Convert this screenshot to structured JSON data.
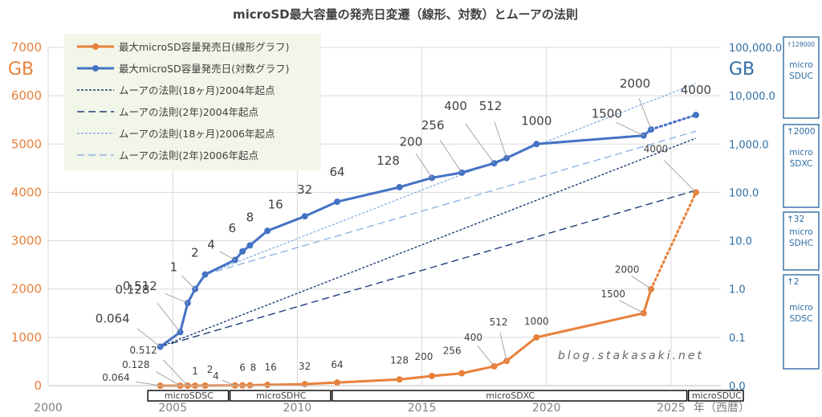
{
  "chart_data": {
    "type": "line",
    "title": "microSD最大容量の発売日変遷（線形、対数）とムーアの法則",
    "left_unit": "GB",
    "right_unit": "GB",
    "x_axis_label": "年（西暦）",
    "x_ticks": [
      2000,
      2005,
      2010,
      2015,
      2020,
      2025
    ],
    "x_range": [
      2000,
      2027
    ],
    "left_ticks": [
      0,
      1000,
      2000,
      3000,
      4000,
      5000,
      6000,
      7000
    ],
    "left_range": [
      0,
      7000
    ],
    "right_ticks": [
      "0.0",
      "0.1",
      "1.0",
      "10.0",
      "100.0",
      "1,000.0",
      "10,000.0",
      "100,000.0"
    ],
    "right_log_range": [
      0.01,
      100000
    ],
    "grid": true,
    "colors": {
      "linear": "#E8803A",
      "log": "#4472C4",
      "moore_dark": "#1F3F7A",
      "moore_light": "#8EB4E3",
      "axis_right": "#2E6DA4",
      "legend_bg": "#F2F6E8"
    },
    "series": [
      {
        "name": "最大microSD容量発売日(線形グラフ)",
        "axis": "left",
        "points": [
          {
            "x": 2004.5,
            "y": 0.064,
            "label": "0.064"
          },
          {
            "x": 2005.3,
            "y": 0.128,
            "label": "0.128"
          },
          {
            "x": 2005.6,
            "y": 0.512,
            "label": "0.512"
          },
          {
            "x": 2005.9,
            "y": 1,
            "label": "1"
          },
          {
            "x": 2006.3,
            "y": 2,
            "label": "2"
          },
          {
            "x": 2007.5,
            "y": 4,
            "label": "4"
          },
          {
            "x": 2007.8,
            "y": 6,
            "label": "6"
          },
          {
            "x": 2008.1,
            "y": 8,
            "label": "8"
          },
          {
            "x": 2008.8,
            "y": 16,
            "label": "16"
          },
          {
            "x": 2010.3,
            "y": 32,
            "label": "32"
          },
          {
            "x": 2011.6,
            "y": 64,
            "label": "64"
          },
          {
            "x": 2014.1,
            "y": 128,
            "label": "128"
          },
          {
            "x": 2015.4,
            "y": 200,
            "label": "200"
          },
          {
            "x": 2016.6,
            "y": 256,
            "label": "256"
          },
          {
            "x": 2017.9,
            "y": 400,
            "label": "400"
          },
          {
            "x": 2018.4,
            "y": 512,
            "label": "512"
          },
          {
            "x": 2019.6,
            "y": 1000,
            "label": "1000"
          },
          {
            "x": 2023.9,
            "y": 1500,
            "label": "1500"
          },
          {
            "x": 2024.2,
            "y": 2000,
            "label": "2000"
          },
          {
            "x": 2026.0,
            "y": 4000,
            "label": "4000"
          }
        ]
      },
      {
        "name": "最大microSD容量発売日(対数グラフ)",
        "axis": "right",
        "points": [
          {
            "x": 2004.5,
            "y": 0.064,
            "label": "0.064"
          },
          {
            "x": 2005.3,
            "y": 0.128,
            "label": "0.128"
          },
          {
            "x": 2005.6,
            "y": 0.512,
            "label": "0.512"
          },
          {
            "x": 2005.9,
            "y": 1,
            "label": "1"
          },
          {
            "x": 2006.3,
            "y": 2,
            "label": "2"
          },
          {
            "x": 2007.5,
            "y": 4,
            "label": "4"
          },
          {
            "x": 2007.8,
            "y": 6,
            "label": "6"
          },
          {
            "x": 2008.1,
            "y": 8,
            "label": "8"
          },
          {
            "x": 2008.8,
            "y": 16,
            "label": "16"
          },
          {
            "x": 2010.3,
            "y": 32,
            "label": "32"
          },
          {
            "x": 2011.6,
            "y": 64,
            "label": "64"
          },
          {
            "x": 2014.1,
            "y": 128,
            "label": "128"
          },
          {
            "x": 2015.4,
            "y": 200,
            "label": "200"
          },
          {
            "x": 2016.6,
            "y": 256,
            "label": "256"
          },
          {
            "x": 2017.9,
            "y": 400,
            "label": "400"
          },
          {
            "x": 2018.4,
            "y": 512,
            "label": "512"
          },
          {
            "x": 2019.6,
            "y": 1000,
            "label": "1000"
          },
          {
            "x": 2023.9,
            "y": 1500,
            "label": "1500"
          },
          {
            "x": 2024.2,
            "y": 2000,
            "label": "2000"
          },
          {
            "x": 2026.0,
            "y": 4000,
            "label": "4000"
          }
        ]
      },
      {
        "name": "ムーアの法則(18ヶ月)2004年起点",
        "axis": "right",
        "start_x": 2004.5,
        "start_y": 0.064,
        "months": 18,
        "style": "dotted",
        "color": "moore_dark"
      },
      {
        "name": "ムーアの法則(2年)2004年起点",
        "axis": "right",
        "start_x": 2004.5,
        "start_y": 0.064,
        "months": 24,
        "style": "dashed",
        "color": "moore_dark"
      },
      {
        "name": "ムーアの法則(18ヶ月)2006年起点",
        "axis": "right",
        "start_x": 2006.3,
        "start_y": 2,
        "months": 18,
        "style": "dotted",
        "color": "moore_light"
      },
      {
        "name": "ムーアの法則(2年)2006年起点",
        "axis": "right",
        "start_x": 2006.3,
        "start_y": 2,
        "months": 24,
        "style": "dashed",
        "color": "moore_light"
      }
    ],
    "eras": [
      {
        "label": "microSDSC",
        "from": 2004.0,
        "to": 2007.3
      },
      {
        "label": "microSDHC",
        "from": 2007.3,
        "to": 2011.4
      },
      {
        "label": "microSDXC",
        "from": 2011.4,
        "to": 2025.7
      },
      {
        "label": "microSDUC",
        "from": 2025.7,
        "to": 2028.3
      }
    ],
    "spec_boxes": [
      {
        "limit": "↑128000",
        "name": [
          "micro",
          "SDUC"
        ]
      },
      {
        "limit": "↑2000",
        "name": [
          "micro",
          "SDXC"
        ]
      },
      {
        "limit": "↑32",
        "name": [
          "micro",
          "SDHC"
        ]
      },
      {
        "limit": "↑2",
        "name": [
          "micro",
          "SDSC"
        ]
      }
    ],
    "watermark": "blog.stakasaki.net"
  }
}
